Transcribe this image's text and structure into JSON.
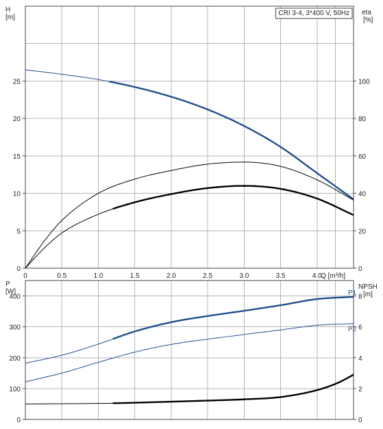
{
  "chart_data": [
    {
      "type": "line",
      "title": "CRI 3-4, 3*400 V, 50Hz",
      "xlabel": "Q [m³/h]",
      "xlim": [
        0,
        4.5
      ],
      "xticks": [
        0,
        0.5,
        1.0,
        1.5,
        2.0,
        2.5,
        3.0,
        3.5,
        4.0
      ],
      "xtick_labels": [
        "0",
        "0.5",
        "1.0",
        "1.5",
        "2.0",
        "2.5",
        "3.0",
        "3.5",
        "4.0"
      ],
      "left_axis": {
        "label_line1": "H",
        "label_line2": "[m]",
        "ylim": [
          0,
          35
        ],
        "ticks": [
          0,
          5,
          10,
          15,
          20,
          25
        ]
      },
      "right_axis": {
        "label_line1": "eta",
        "label_line2": "[%]",
        "ylim": [
          0,
          140
        ],
        "ticks": [
          0,
          20,
          40,
          60,
          80,
          100
        ]
      },
      "grid": true,
      "series": [
        {
          "id": "h",
          "axis": "left",
          "color": "#1f4e8c",
          "x": [
            0,
            0.5,
            1.0,
            1.5,
            2.0,
            2.5,
            3.0,
            3.5,
            4.0,
            4.5
          ],
          "y": [
            26.5,
            25.9,
            25.2,
            24.2,
            22.9,
            21.2,
            19.0,
            16.2,
            12.7,
            9.2
          ],
          "bold_from_x": 1.15
        },
        {
          "id": "eta_total",
          "axis": "right",
          "color": "#000000",
          "x": [
            0,
            0.25,
            0.5,
            1.0,
            1.5,
            2.0,
            2.5,
            3.0,
            3.5,
            4.0,
            4.5
          ],
          "y": [
            0,
            14,
            25.5,
            40,
            47.6,
            52.2,
            55.6,
            56.7,
            54.4,
            47.2,
            36.4
          ],
          "bold_from_x": null
        },
        {
          "id": "eta_pump",
          "axis": "right",
          "color": "#000000",
          "x": [
            0,
            0.25,
            0.5,
            1.0,
            1.5,
            2.0,
            2.5,
            3.0,
            3.5,
            4.0,
            4.5
          ],
          "y": [
            0,
            10.4,
            18.8,
            28.8,
            35.2,
            39.6,
            42.8,
            44.0,
            42.4,
            37.2,
            28.4
          ],
          "bold_from_x": 1.2
        }
      ]
    },
    {
      "type": "line",
      "xlim": [
        0,
        4.5
      ],
      "xticks": [
        0,
        0.5,
        1.0,
        1.5,
        2.0,
        2.5,
        3.0,
        3.5,
        4.0
      ],
      "left_axis": {
        "label_line1": "P",
        "label_line2": "[W]",
        "ylim": [
          0,
          450
        ],
        "ticks": [
          0,
          100,
          200,
          300,
          400
        ]
      },
      "right_axis": {
        "label_line1": "NPSH",
        "label_line2": "[m]",
        "ylim": [
          0,
          9
        ],
        "ticks": [
          0,
          2,
          4,
          6,
          8
        ]
      },
      "grid": true,
      "series": [
        {
          "id": "p1",
          "name": "P1",
          "axis": "left",
          "color": "#1f4e8c",
          "x": [
            0,
            0.5,
            1.0,
            1.5,
            2.0,
            2.5,
            3.0,
            3.5,
            4.0,
            4.5
          ],
          "y": [
            182,
            208,
            244,
            285,
            315,
            335,
            352,
            370,
            390,
            397
          ],
          "bold_from_x": 1.2
        },
        {
          "id": "p2",
          "name": "P2",
          "axis": "left",
          "color": "#1f4e8c",
          "x": [
            0,
            0.5,
            1.0,
            1.5,
            2.0,
            2.5,
            3.0,
            3.5,
            4.0,
            4.5
          ],
          "y": [
            122,
            150,
            185,
            218,
            243,
            260,
            275,
            290,
            305,
            310
          ],
          "bold_from_x": null
        },
        {
          "id": "npsh",
          "axis": "right",
          "color": "#000000",
          "x": [
            0,
            1.2,
            2.0,
            2.5,
            3.0,
            3.5,
            4.0,
            4.3,
            4.5
          ],
          "y": [
            1.0,
            1.05,
            1.15,
            1.22,
            1.3,
            1.45,
            1.9,
            2.4,
            2.9
          ],
          "bold_from_x": 1.2
        }
      ]
    }
  ]
}
